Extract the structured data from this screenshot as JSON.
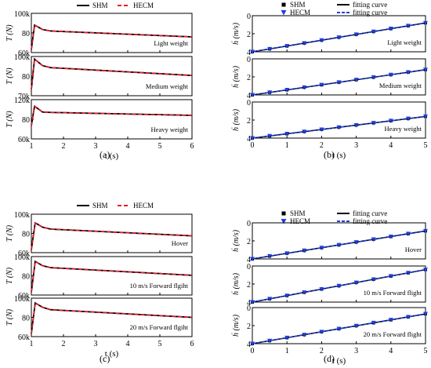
{
  "panel_labels": [
    "(a)",
    "(b)",
    "(c)",
    "(d)"
  ],
  "colors": {
    "shm": "#000000",
    "hecm": "#e8192c",
    "fit_black": "#000000",
    "fit_blue": "#1f3ee0",
    "marker_black": "#000000",
    "marker_blue": "#1f3ee0",
    "frame": "#000000"
  },
  "chart_data": [
    {
      "panel": "a",
      "type": "line",
      "legend": {
        "position": "top",
        "entries": [
          "SHM",
          "HECM"
        ]
      },
      "xlabel": "t (s)",
      "xlim": [
        1,
        6
      ],
      "xticks": [
        "1",
        "2",
        "3",
        "4",
        "5",
        "6"
      ],
      "subplots": [
        {
          "annotation": "Light weight",
          "ylabel": "T (N)",
          "ylim": [
            60000,
            100000
          ],
          "yticks": [
            "100k",
            "80",
            "60k"
          ],
          "t0": 1.0,
          "t_peak": 1.1,
          "t_dip": 1.35,
          "start": 63000,
          "peak": 88000,
          "dip": 83500,
          "plateau_t": 1.6,
          "plateau": 82000,
          "end": 76000
        },
        {
          "annotation": "Medium weight",
          "ylabel": "T (N)",
          "ylim": [
            70000,
            100000
          ],
          "yticks": [
            "100k",
            "80",
            "70k"
          ],
          "t0": 1.0,
          "t_peak": 1.1,
          "t_dip": 1.35,
          "start": 75000,
          "peak": 98000,
          "dip": 93000,
          "plateau_t": 1.6,
          "plateau": 91500,
          "end": 85500
        },
        {
          "annotation": "Heavy weight",
          "ylabel": "T (N)",
          "ylim": [
            60000,
            120000
          ],
          "yticks": [
            "120k",
            "80",
            "60k"
          ],
          "t0": 1.0,
          "t_peak": 1.1,
          "t_dip": 1.35,
          "start": 80000,
          "peak": 110000,
          "dip": 101000,
          "plateau_t": 1.6,
          "plateau": 100500,
          "end": 96000
        }
      ]
    },
    {
      "panel": "b",
      "type": "scatter",
      "legend": {
        "position": "top",
        "entries": [
          "SHM",
          "fitting curve",
          "HECM",
          "fitting curve"
        ]
      },
      "xlabel": "t (s)",
      "xlim": [
        0,
        5
      ],
      "xticks": [
        "0",
        "1",
        "2",
        "3",
        "4",
        "5"
      ],
      "marker_x": [
        0,
        0.5,
        1,
        1.5,
        2,
        2.5,
        3,
        3.5,
        4,
        4.5,
        5
      ],
      "subplots": [
        {
          "annotation": "Light weight",
          "ylabel": "ḣ (m/s)",
          "ylim": [
            0,
            4
          ],
          "yticks": [
            "0",
            "2",
            "4"
          ],
          "slope": 0.64
        },
        {
          "annotation": "Medium weight",
          "ylabel": "ḣ (m/s)",
          "ylim": [
            0,
            4
          ],
          "yticks": [
            "0",
            "2",
            "4"
          ],
          "slope": 0.56
        },
        {
          "annotation": "Heavy weight",
          "ylabel": "ḣ (m/s)",
          "ylim": [
            0,
            4
          ],
          "yticks": [
            "0",
            "2",
            "4"
          ],
          "slope": 0.48
        }
      ]
    },
    {
      "panel": "c",
      "type": "line",
      "legend": {
        "position": "top",
        "entries": [
          "SHM",
          "HECM"
        ]
      },
      "xlabel": "t (s)",
      "xlim": [
        1,
        6
      ],
      "xticks": [
        "1",
        "2",
        "3",
        "4",
        "5",
        "6"
      ],
      "subplots": [
        {
          "annotation": "Hover",
          "ylabel": "T (N)",
          "ylim": [
            60000,
            100000
          ],
          "yticks": [
            "100k",
            "80",
            "60k"
          ],
          "t0": 1.0,
          "t_peak": 1.12,
          "t_dip": 1.35,
          "start": 63000,
          "peak": 91000,
          "dip": 86500,
          "plateau_t": 1.6,
          "plateau": 84500,
          "end": 77500
        },
        {
          "annotation": "10 m/s Forward flgiht",
          "ylabel": "T (N)",
          "ylim": [
            60000,
            100000
          ],
          "yticks": [
            "100k",
            "80",
            "60k"
          ],
          "t0": 1.0,
          "t_peak": 1.12,
          "t_dip": 1.35,
          "start": 63000,
          "peak": 95000,
          "dip": 90500,
          "plateau_t": 1.6,
          "plateau": 88500,
          "end": 80500
        },
        {
          "annotation": "20 m/s Forward flgiht",
          "ylabel": "T (N)",
          "ylim": [
            60000,
            100000
          ],
          "yticks": [
            "100k",
            "80",
            "60k"
          ],
          "t0": 1.0,
          "t_peak": 1.12,
          "t_dip": 1.35,
          "start": 63000,
          "peak": 95000,
          "dip": 90500,
          "plateau_t": 1.6,
          "plateau": 88000,
          "end": 80000
        }
      ]
    },
    {
      "panel": "d",
      "type": "scatter",
      "legend": {
        "position": "top",
        "entries": [
          "SHM",
          "fitting curve",
          "HECM",
          "fitting curve"
        ]
      },
      "xlabel": "t (s)",
      "xlim": [
        0,
        5
      ],
      "xticks": [
        "0",
        "1",
        "2",
        "3",
        "4",
        "5"
      ],
      "marker_x": [
        0,
        0.5,
        1,
        1.5,
        2,
        2.5,
        3,
        3.5,
        4,
        4.5,
        5
      ],
      "subplots": [
        {
          "annotation": "Hover",
          "ylabel": "ḣ (m/s)",
          "ylim": [
            0,
            4
          ],
          "yticks": [
            "0",
            "2",
            "4"
          ],
          "slope": 0.62
        },
        {
          "annotation": "10 m/s Forward flight",
          "ylabel": "ḣ (m/s)",
          "ylim": [
            0,
            4
          ],
          "yticks": [
            "0",
            "2",
            "4"
          ],
          "slope": 0.72
        },
        {
          "annotation": "20 m/s Forward flight",
          "ylabel": "ḣ (m/s)",
          "ylim": [
            0,
            4
          ],
          "yticks": [
            "0",
            "2",
            "4"
          ],
          "slope": 0.66
        }
      ]
    }
  ]
}
